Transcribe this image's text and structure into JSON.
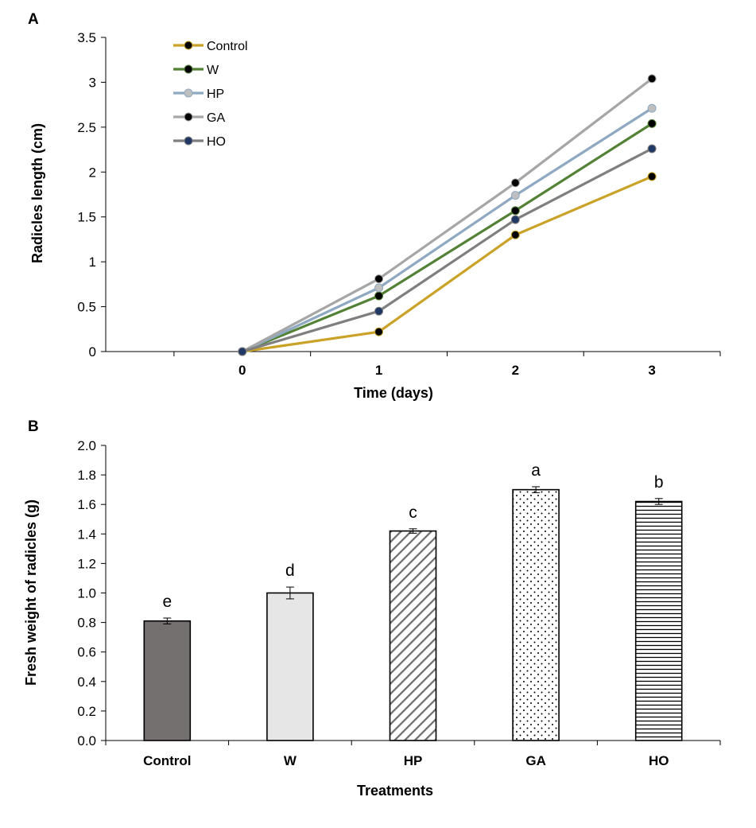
{
  "chart_data": [
    {
      "panel": "A",
      "type": "line",
      "xlabel": "Time (days)",
      "ylabel": "Radicles length (cm)",
      "x": [
        0,
        1,
        2,
        3
      ],
      "xticks": [
        "0",
        "1",
        "2",
        "3"
      ],
      "ylim": [
        0,
        3.5
      ],
      "yticks": [
        "0",
        "0.5",
        "1",
        "1.5",
        "2",
        "2.5",
        "3",
        "3.5"
      ],
      "legend_position": "top-left",
      "grid": false,
      "series": [
        {
          "name": "Control",
          "values": [
            0,
            0.22,
            1.3,
            1.95
          ],
          "color": "#c9a227",
          "marker": "#000000"
        },
        {
          "name": "W",
          "values": [
            0,
            0.62,
            1.57,
            2.54
          ],
          "color": "#538135",
          "marker": "#000000"
        },
        {
          "name": "HP",
          "values": [
            0,
            0.71,
            1.74,
            2.71
          ],
          "color": "#8ea9c1",
          "marker": "#bfbfbf"
        },
        {
          "name": "GA",
          "values": [
            0,
            0.81,
            1.88,
            3.04
          ],
          "color": "#a6a6a6",
          "marker": "#000000"
        },
        {
          "name": "HO",
          "values": [
            0,
            0.45,
            1.47,
            2.26
          ],
          "color": "#7f7f7f",
          "marker": "#1f3864"
        }
      ]
    },
    {
      "panel": "B",
      "type": "bar",
      "xlabel": "Treatments",
      "ylabel": "Fresh weight of radicles (g)",
      "categories": [
        "Control",
        "W",
        "HP",
        "GA",
        "HO"
      ],
      "values": [
        0.81,
        1.0,
        1.42,
        1.7,
        1.62
      ],
      "errors": [
        0.02,
        0.04,
        0.015,
        0.02,
        0.02
      ],
      "letters": [
        "e",
        "d",
        "c",
        "a",
        "b"
      ],
      "patterns": [
        "solid-dark",
        "solid-light",
        "diagonal",
        "dots",
        "horizontal"
      ],
      "ylim": [
        0,
        2.0
      ],
      "yticks": [
        "0.0",
        "0.2",
        "0.4",
        "0.6",
        "0.8",
        "1.0",
        "1.2",
        "1.4",
        "1.6",
        "1.8",
        "2.0"
      ],
      "grid": false
    }
  ]
}
